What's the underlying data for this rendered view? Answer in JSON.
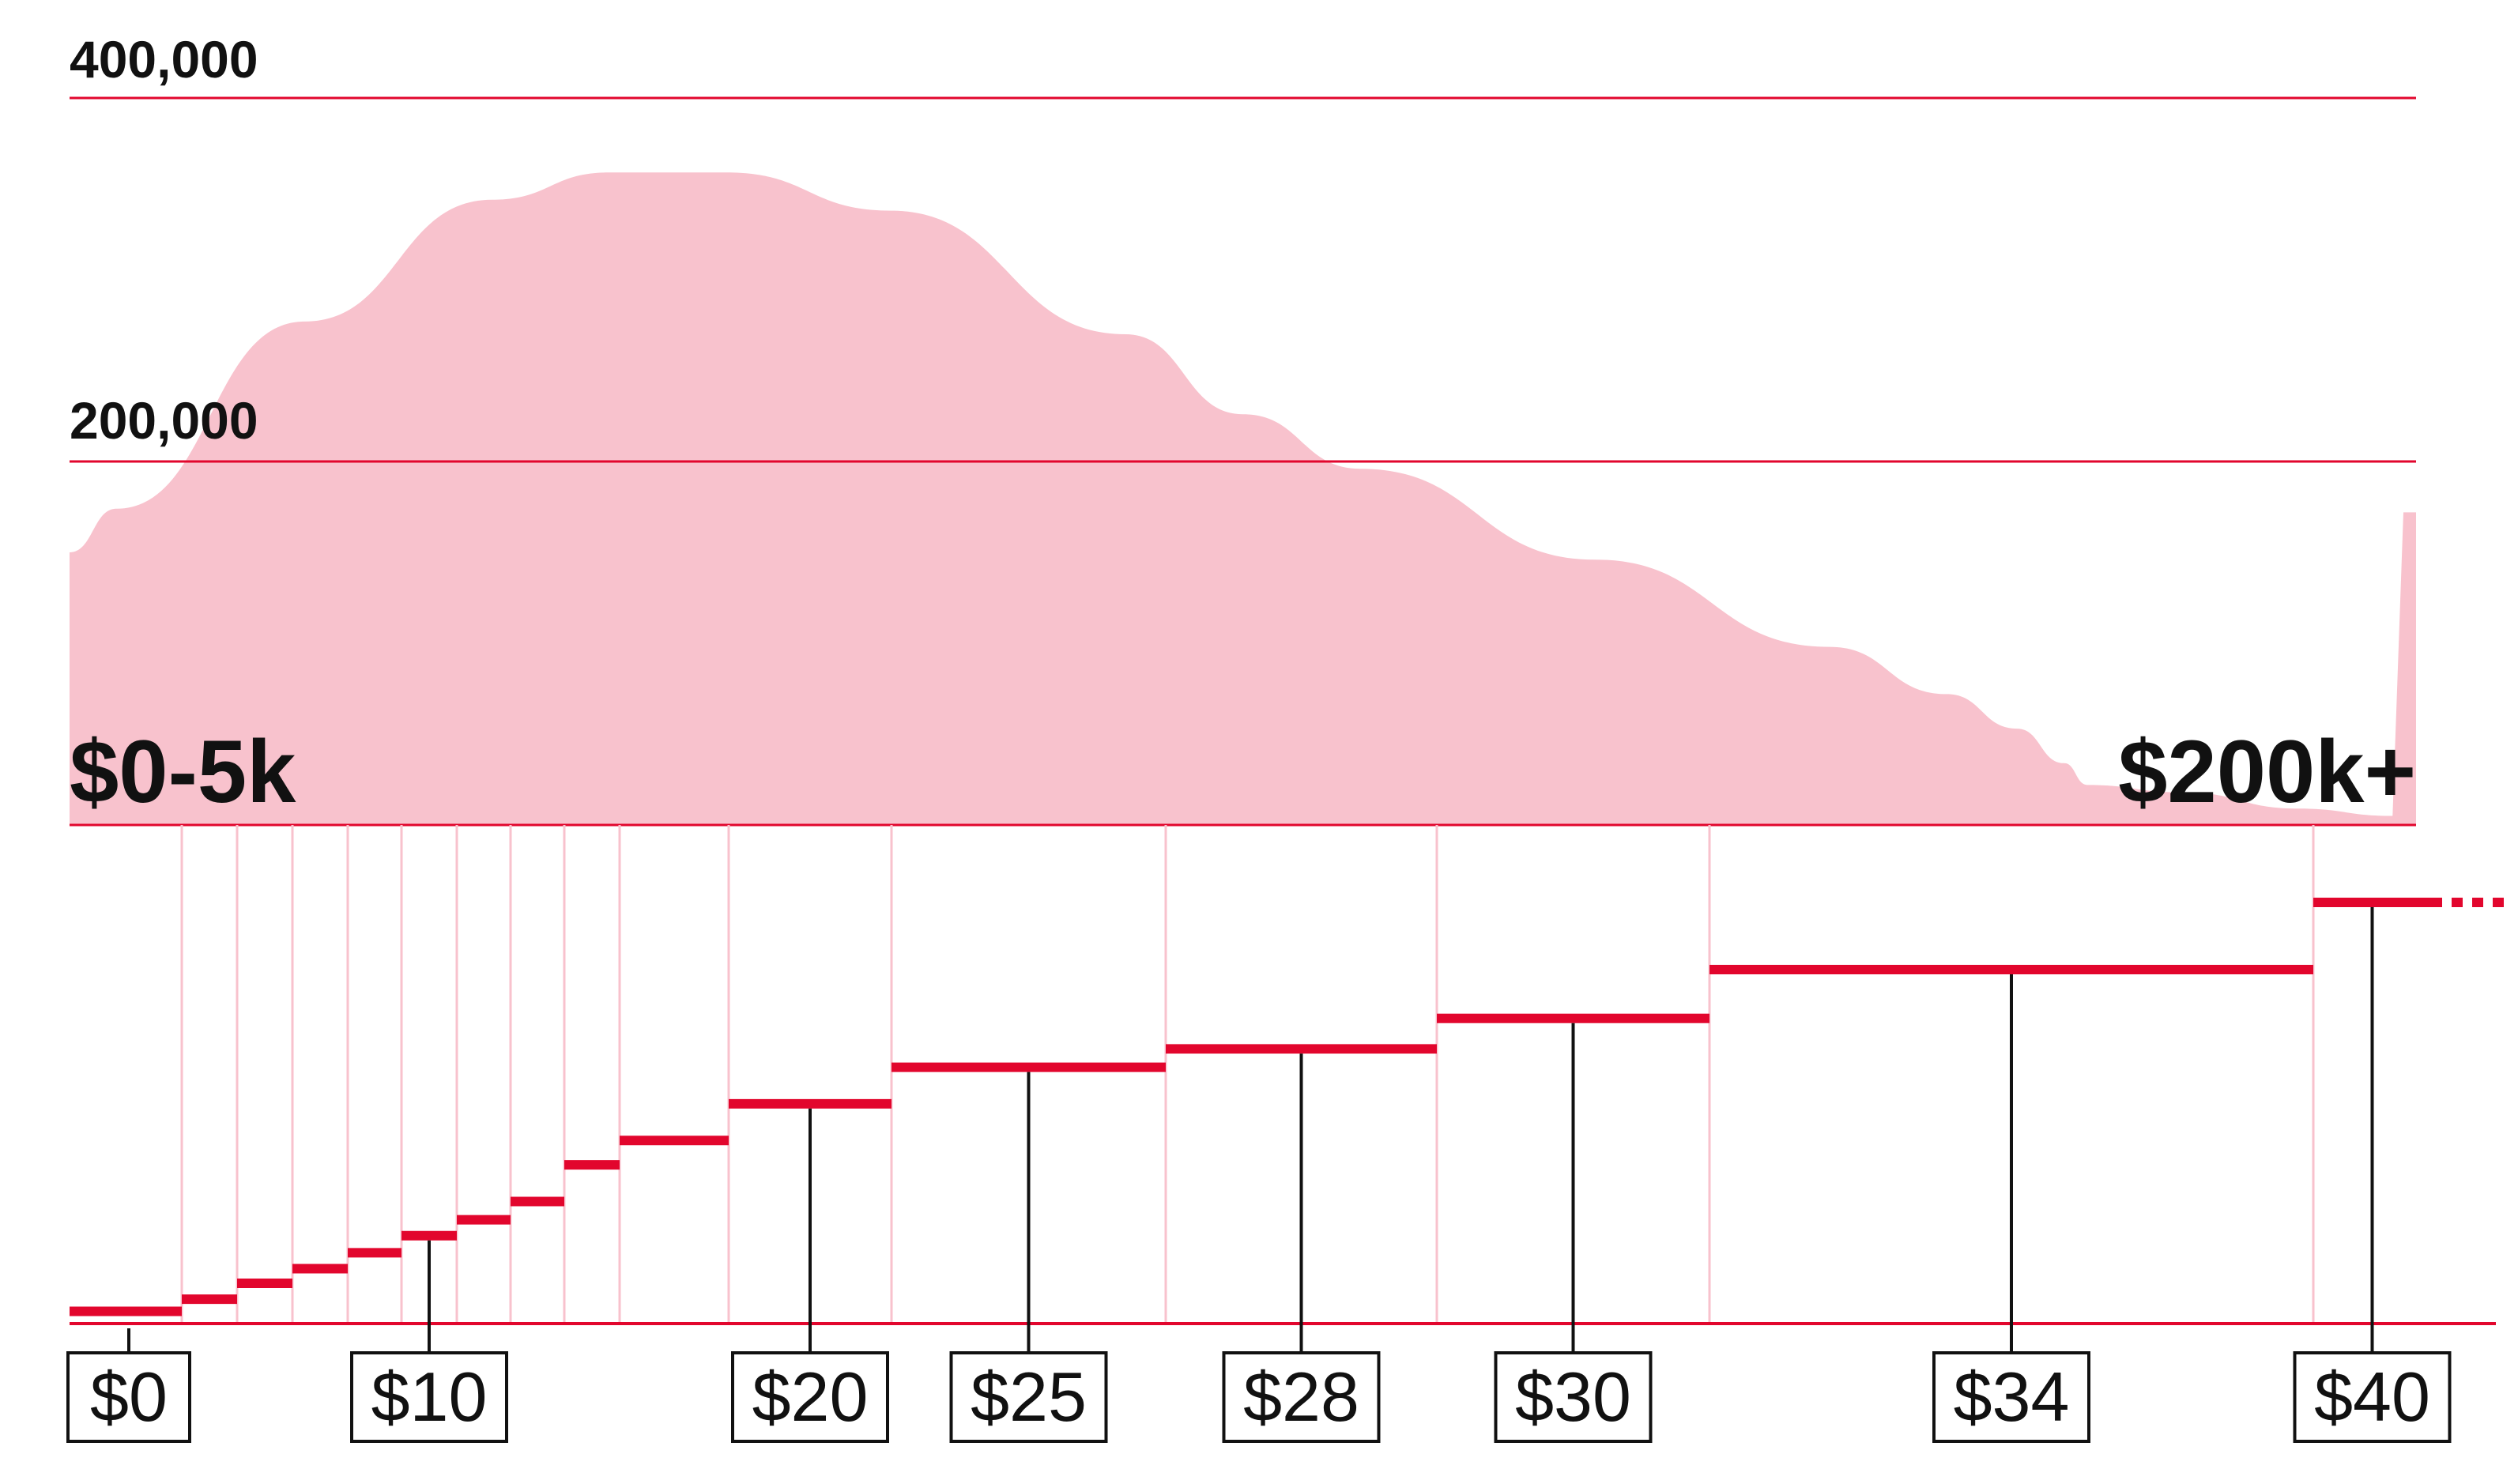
{
  "colors": {
    "area_fill": "#f8c2cd",
    "accent": "#e2062d",
    "divider": "#f8c2cd",
    "text": "#111111",
    "callout": "#111111"
  },
  "chart_data": [
    {
      "type": "area",
      "title": "",
      "xlabel": "",
      "ylabel": "",
      "ylim": [
        0,
        400000
      ],
      "y_ticks": [
        "400,000",
        "200,000"
      ],
      "range_labels": {
        "start": "$0-5k",
        "end": "$200k+"
      },
      "x": [
        0,
        0.02,
        0.1,
        0.18,
        0.23,
        0.28,
        0.35,
        0.45,
        0.5,
        0.55,
        0.65,
        0.75,
        0.8,
        0.83,
        0.85,
        0.86,
        0.9,
        0.95,
        0.99,
        1.0
      ],
      "values": [
        150000,
        174000,
        277000,
        344000,
        359000,
        359000,
        338000,
        270000,
        226000,
        196000,
        146000,
        98000,
        72000,
        53000,
        34000,
        22000,
        18000,
        9000,
        5000,
        172000
      ]
    },
    {
      "type": "bar",
      "title": "",
      "xlabel": "",
      "ylabel": "",
      "tick_labels": [
        "$0",
        "$10",
        "$20",
        "$25",
        "$28",
        "$30",
        "$34",
        "$40"
      ],
      "levels": [
        0,
        1,
        2,
        3,
        4,
        5,
        6,
        7,
        8,
        9,
        10,
        11,
        12,
        13,
        14,
        15,
        16
      ],
      "values": [
        0,
        1,
        2,
        3.3,
        4.5,
        5.8,
        7.2,
        8.5,
        10,
        13,
        15,
        18,
        21,
        22.5,
        25,
        29,
        34.5
      ],
      "callouts": [
        {
          "label": "$0",
          "level": 0
        },
        {
          "label": "$10",
          "level": 6
        },
        {
          "label": "$20",
          "level": 11
        },
        {
          "label": "$25",
          "level": 12
        },
        {
          "label": "$28",
          "level": 13
        },
        {
          "label": "$30",
          "level": 14
        },
        {
          "label": "$34",
          "level": 15
        },
        {
          "label": "$40",
          "level": 16
        }
      ]
    }
  ]
}
